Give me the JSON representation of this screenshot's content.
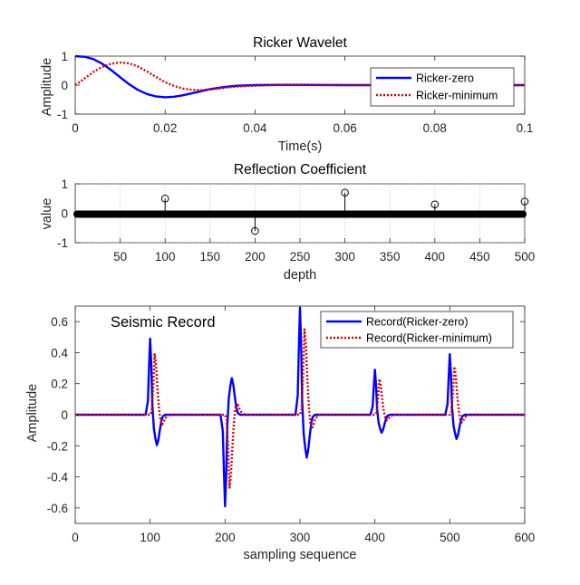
{
  "chart_data": [
    {
      "type": "line",
      "title": "Ricker Wavelet",
      "xlabel": "Time(s)",
      "ylabel": "Amplitude",
      "xlim": [
        0,
        0.1
      ],
      "ylim": [
        -1,
        1
      ],
      "xticks": [
        "0",
        "0.02",
        "0.04",
        "0.06",
        "0.08",
        "0.1"
      ],
      "yticks": [
        "-1",
        "0",
        "1"
      ],
      "grid": false,
      "legend_position": "top-right",
      "colors": {
        "zero": "#0000ff",
        "minimum": "#dd0000"
      },
      "series": [
        {
          "name": "Ricker-zero",
          "style": "solid",
          "x": [
            0,
            0.002,
            0.004,
            0.006,
            0.008,
            0.01,
            0.012,
            0.014,
            0.016,
            0.018,
            0.02,
            0.022,
            0.024,
            0.026,
            0.028,
            0.03,
            0.032,
            0.034,
            0.036,
            0.038,
            0.04,
            0.045,
            0.05,
            0.06,
            0.07,
            0.08,
            0.09,
            0.1
          ],
          "y": [
            1.0,
            0.98,
            0.9,
            0.74,
            0.52,
            0.27,
            0.03,
            -0.17,
            -0.31,
            -0.39,
            -0.42,
            -0.4,
            -0.35,
            -0.28,
            -0.21,
            -0.14,
            -0.09,
            -0.05,
            -0.02,
            -0.01,
            0.0,
            0.01,
            0.01,
            0.0,
            0.0,
            0.0,
            0.0,
            0.0
          ]
        },
        {
          "name": "Ricker-minimum",
          "style": "dotted",
          "x": [
            0,
            0.002,
            0.004,
            0.006,
            0.008,
            0.01,
            0.012,
            0.014,
            0.016,
            0.018,
            0.02,
            0.022,
            0.024,
            0.026,
            0.028,
            0.03,
            0.032,
            0.034,
            0.036,
            0.04,
            0.045,
            0.05,
            0.06,
            0.07,
            0.08,
            0.09,
            0.1
          ],
          "y": [
            0.0,
            0.22,
            0.45,
            0.63,
            0.74,
            0.78,
            0.75,
            0.64,
            0.47,
            0.28,
            0.1,
            -0.03,
            -0.12,
            -0.16,
            -0.17,
            -0.15,
            -0.12,
            -0.08,
            -0.05,
            -0.02,
            0.0,
            0.0,
            0.0,
            0.0,
            0.0,
            0.0,
            0.0
          ]
        }
      ]
    },
    {
      "type": "stem",
      "title": "Reflection Coefficient",
      "xlabel": "depth",
      "ylabel": "value",
      "xlim": [
        0,
        500
      ],
      "ylim": [
        -1,
        1
      ],
      "xticks": [
        "50",
        "100",
        "150",
        "200",
        "250",
        "300",
        "350",
        "400",
        "450",
        "500"
      ],
      "yticks": [
        "-1",
        "0",
        "1"
      ],
      "grid": true,
      "stems": [
        {
          "x": 100,
          "y": 0.5
        },
        {
          "x": 200,
          "y": -0.6
        },
        {
          "x": 300,
          "y": 0.7
        },
        {
          "x": 400,
          "y": 0.3
        },
        {
          "x": 500,
          "y": 0.4
        }
      ],
      "baseline": "zero-valued samples drawn as dense black markers along y = 0"
    },
    {
      "type": "line",
      "title": "",
      "annotation": "Seismic Record",
      "xlabel": "sampling sequence",
      "ylabel": "Amplitude",
      "xlim": [
        0,
        600
      ],
      "ylim": [
        -0.7,
        0.7
      ],
      "xticks": [
        "0",
        "100",
        "200",
        "300",
        "400",
        "500",
        "600"
      ],
      "yticks": [
        "-0.6",
        "-0.4",
        "-0.2",
        "0",
        "0.2",
        "0.4",
        "0.6"
      ],
      "grid": false,
      "legend_position": "top-right",
      "series": [
        {
          "name": "Record(Ricker-zero)",
          "style": "solid",
          "events": [
            {
              "x": 100,
              "peak": 0.49
            },
            {
              "x": 200,
              "peak": -0.59
            },
            {
              "x": 300,
              "peak": 0.69
            },
            {
              "x": 400,
              "peak": 0.29
            },
            {
              "x": 500,
              "peak": 0.39
            }
          ]
        },
        {
          "name": "Record(Ricker-minimum)",
          "style": "dotted",
          "events": [
            {
              "x": 106,
              "peak": 0.39
            },
            {
              "x": 206,
              "peak": -0.47
            },
            {
              "x": 306,
              "peak": 0.55
            },
            {
              "x": 406,
              "peak": 0.23
            },
            {
              "x": 506,
              "peak": 0.31
            }
          ]
        }
      ]
    }
  ]
}
